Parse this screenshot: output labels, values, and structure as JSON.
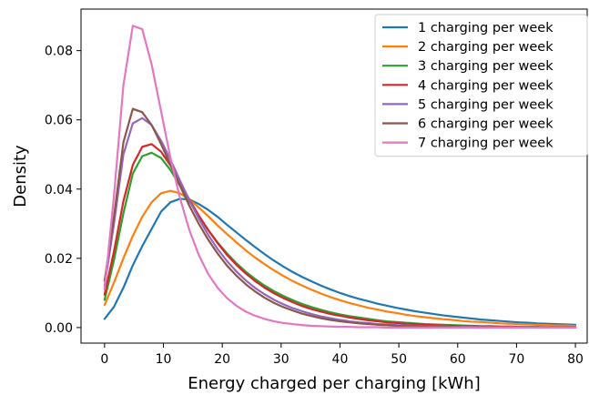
{
  "chart_data": {
    "type": "line",
    "xlabel": "Energy charged per charging [kWh]",
    "ylabel": "Density",
    "xlim": [
      -4,
      82
    ],
    "ylim": [
      -0.0045,
      0.092
    ],
    "xticks": [
      0,
      10,
      20,
      30,
      40,
      50,
      60,
      70,
      80
    ],
    "yticks": [
      0.0,
      0.02,
      0.04,
      0.06,
      0.08
    ],
    "xtick_labels": [
      "0",
      "10",
      "20",
      "30",
      "40",
      "50",
      "60",
      "70",
      "80"
    ],
    "ytick_labels": [
      "0.00",
      "0.02",
      "0.04",
      "0.06",
      "0.08"
    ],
    "grid": false,
    "legend_position": "top-right",
    "x": [
      0,
      1.6,
      3.2,
      4.8,
      6.4,
      8.0,
      9.6,
      11.2,
      12.8,
      14.4,
      16.0,
      17.6,
      19.2,
      20.8,
      22.4,
      24.0,
      25.6,
      27.2,
      28.8,
      30.4,
      32.0,
      33.6,
      35.2,
      36.8,
      38.4,
      40.0,
      41.6,
      43.2,
      44.8,
      46.4,
      48.0,
      49.6,
      51.2,
      52.8,
      54.4,
      56.0,
      57.6,
      59.2,
      60.8,
      62.4,
      64.0,
      65.6,
      67.2,
      68.8,
      70.4,
      72.0,
      73.6,
      75.2,
      76.8,
      78.4,
      80.0
    ],
    "series": [
      {
        "name": "1 charging per week",
        "color": "#1f77b4",
        "values": [
          0.0025,
          0.006,
          0.0115,
          0.018,
          0.0235,
          0.0285,
          0.0335,
          0.0362,
          0.0372,
          0.037,
          0.0357,
          0.034,
          0.032,
          0.0297,
          0.0275,
          0.0253,
          0.0232,
          0.0212,
          0.0193,
          0.0176,
          0.016,
          0.0146,
          0.0133,
          0.0121,
          0.011,
          0.01,
          0.0091,
          0.0083,
          0.0076,
          0.0069,
          0.0063,
          0.0057,
          0.0052,
          0.0047,
          0.0043,
          0.0039,
          0.0035,
          0.0032,
          0.0029,
          0.0026,
          0.0023,
          0.0021,
          0.0019,
          0.0017,
          0.0015,
          0.0014,
          0.0012,
          0.0011,
          0.001,
          0.0009,
          0.0008
        ]
      },
      {
        "name": "2 charging per week",
        "color": "#ff7f0e",
        "values": [
          0.0065,
          0.013,
          0.02,
          0.0265,
          0.032,
          0.0362,
          0.0388,
          0.0395,
          0.0388,
          0.037,
          0.0347,
          0.0322,
          0.0295,
          0.027,
          0.0246,
          0.0223,
          0.0202,
          0.0183,
          0.0165,
          0.0149,
          0.0134,
          0.0121,
          0.0109,
          0.0098,
          0.0088,
          0.0079,
          0.0071,
          0.0064,
          0.0057,
          0.0052,
          0.0046,
          0.0042,
          0.0037,
          0.0033,
          0.003,
          0.0027,
          0.0024,
          0.0022,
          0.0019,
          0.0017,
          0.0016,
          0.0014,
          0.0012,
          0.0011,
          0.001,
          0.0009,
          0.0008,
          0.0007,
          0.0006,
          0.0006,
          0.0005
        ]
      },
      {
        "name": "3 charging per week",
        "color": "#2ca02c",
        "values": [
          0.008,
          0.0195,
          0.033,
          0.0445,
          0.0495,
          0.0505,
          0.049,
          0.0455,
          0.041,
          0.0365,
          0.0322,
          0.0282,
          0.0246,
          0.0214,
          0.0186,
          0.0161,
          0.014,
          0.0121,
          0.0105,
          0.0091,
          0.0079,
          0.0068,
          0.0059,
          0.0051,
          0.0044,
          0.0038,
          0.0033,
          0.0029,
          0.0025,
          0.0021,
          0.0018,
          0.0016,
          0.0014,
          0.0012,
          0.001,
          0.0009,
          0.0008,
          0.0007,
          0.0006,
          0.0005,
          0.0004,
          0.0004,
          0.0003,
          0.0003,
          0.0002,
          0.0002,
          0.0002,
          0.0001,
          0.0001,
          0.0001,
          0.0001
        ]
      },
      {
        "name": "4 charging per week",
        "color": "#d62728",
        "values": [
          0.0095,
          0.022,
          0.0365,
          0.047,
          0.0522,
          0.053,
          0.0508,
          0.0468,
          0.042,
          0.037,
          0.0324,
          0.0282,
          0.0244,
          0.021,
          0.0181,
          0.0156,
          0.0134,
          0.0115,
          0.0099,
          0.0085,
          0.0073,
          0.0062,
          0.0053,
          0.0046,
          0.0039,
          0.0034,
          0.0029,
          0.0025,
          0.0021,
          0.0018,
          0.0015,
          0.0013,
          0.0011,
          0.001,
          0.0008,
          0.0007,
          0.0006,
          0.0005,
          0.0004,
          0.0004,
          0.0003,
          0.0003,
          0.0002,
          0.0002,
          0.0002,
          0.0001,
          0.0001,
          0.0001,
          0.0001,
          0.0001,
          0.0001
        ]
      },
      {
        "name": "5 charging per week",
        "color": "#9467bd",
        "values": [
          0.012,
          0.03,
          0.05,
          0.059,
          0.0605,
          0.0585,
          0.054,
          0.0485,
          0.0425,
          0.0368,
          0.0315,
          0.0268,
          0.0227,
          0.0192,
          0.0162,
          0.0136,
          0.0114,
          0.0096,
          0.008,
          0.0067,
          0.0056,
          0.0047,
          0.0039,
          0.0032,
          0.0027,
          0.0022,
          0.0018,
          0.0015,
          0.0013,
          0.001,
          0.0009,
          0.0007,
          0.0006,
          0.0005,
          0.0004,
          0.0003,
          0.0003,
          0.0002,
          0.0002,
          0.0002,
          0.0001,
          0.0001,
          0.0001,
          0.0001,
          0.0001,
          0.0001,
          0.0,
          0.0,
          0.0,
          0.0,
          0.0
        ]
      },
      {
        "name": "6 charging per week",
        "color": "#8c564b",
        "values": [
          0.0135,
          0.032,
          0.0535,
          0.0632,
          0.0622,
          0.0585,
          0.053,
          0.047,
          0.041,
          0.0352,
          0.03,
          0.0254,
          0.0214,
          0.0179,
          0.015,
          0.0125,
          0.0104,
          0.0086,
          0.0071,
          0.0059,
          0.0049,
          0.004,
          0.0033,
          0.0027,
          0.0022,
          0.0018,
          0.0015,
          0.0012,
          0.001,
          0.0008,
          0.0007,
          0.0005,
          0.0004,
          0.0004,
          0.0003,
          0.0002,
          0.0002,
          0.0002,
          0.0001,
          0.0001,
          0.0001,
          0.0001,
          0.0001,
          0.0,
          0.0,
          0.0,
          0.0,
          0.0,
          0.0,
          0.0,
          0.0
        ]
      },
      {
        "name": "7 charging per week",
        "color": "#e377c2",
        "values": [
          0.011,
          0.038,
          0.07,
          0.0872,
          0.0862,
          0.076,
          0.0625,
          0.049,
          0.0375,
          0.0282,
          0.021,
          0.0155,
          0.0115,
          0.0085,
          0.0063,
          0.0046,
          0.0034,
          0.0025,
          0.0018,
          0.0013,
          0.001,
          0.0007,
          0.0005,
          0.0004,
          0.0003,
          0.0002,
          0.0002,
          0.0001,
          0.0001,
          0.0001,
          0.0,
          0.0,
          0.0,
          0.0,
          0.0,
          0.0,
          0.0,
          0.0,
          0.0,
          0.0,
          0.0,
          0.0,
          0.0,
          0.0,
          0.0,
          0.0,
          0.0,
          0.0,
          0.0,
          0.0,
          0.0
        ]
      }
    ]
  }
}
